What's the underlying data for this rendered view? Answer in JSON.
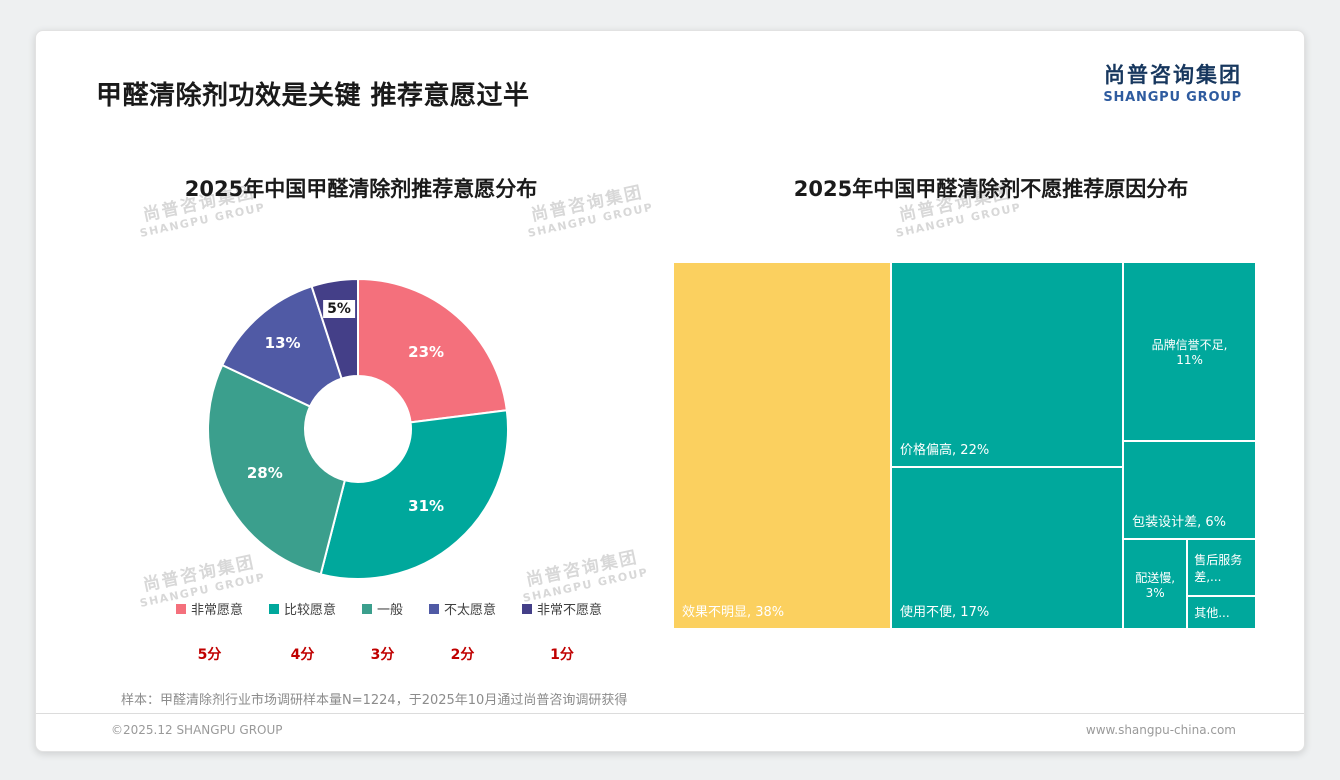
{
  "page": {
    "title": "甲醛清除剂功效是关键 推荐意愿过半",
    "logo": {
      "cn": "尚普咨询集团",
      "en": "SHANGPU GROUP"
    },
    "watermark": {
      "cn": "尚普咨询集团",
      "en": "SHANGPU GROUP"
    },
    "footnote": "样本：甲醛清除剂行业市场调研样本量N=1224，于2025年10月通过尚普咨询调研获得",
    "footer": {
      "left": "©2025.12 SHANGPU GROUP",
      "right": "www.shangpu-china.com"
    }
  },
  "chart_data": [
    {
      "type": "pie",
      "donut": true,
      "title": "2025年中国甲醛清除剂推荐意愿分布",
      "labels": [
        "非常愿意",
        "比较愿意",
        "一般",
        "不太愿意",
        "非常不愿意"
      ],
      "values": [
        23,
        31,
        28,
        13,
        5
      ],
      "colors": [
        "#F4707C",
        "#00A89C",
        "#3B9F8D",
        "#505AA5",
        "#443F88"
      ],
      "scores": [
        "5分",
        "4分",
        "3分",
        "2分",
        "1分"
      ],
      "label_format": "percent",
      "legend_position": "bottom"
    },
    {
      "type": "treemap",
      "title": "2025年中国甲醛清除剂不愿推荐原因分布",
      "items": [
        {
          "label": "效果不明显",
          "value": 38,
          "text": "效果不明显, 38%",
          "color": "#FBD05F",
          "rect": [
            0,
            0,
            0.374,
            1
          ],
          "align": "bottom-left"
        },
        {
          "label": "价格偏高",
          "value": 22,
          "text": "价格偏高, 22%",
          "color": "#00A89C",
          "rect": [
            0.374,
            0,
            0.398,
            0.559
          ],
          "align": "bottom-left"
        },
        {
          "label": "使用不便",
          "value": 17,
          "text": "使用不便, 17%",
          "color": "#00A89C",
          "rect": [
            0.374,
            0.559,
            0.398,
            0.441
          ],
          "align": "bottom-left"
        },
        {
          "label": "品牌信誉不足",
          "value": 11,
          "text": "品牌信誉不足,\n11%",
          "color": "#00A89C",
          "rect": [
            0.772,
            0,
            0.228,
            0.488
          ],
          "align": "center"
        },
        {
          "label": "包装设计差",
          "value": 6,
          "text": "包装设计差, 6%",
          "color": "#00A89C",
          "rect": [
            0.772,
            0.488,
            0.228,
            0.267
          ],
          "align": "bottom-left"
        },
        {
          "label": "配送慢",
          "value": 3,
          "text": "配送慢,\n3%",
          "color": "#00A89C",
          "rect": [
            0.772,
            0.755,
            0.11,
            0.245
          ],
          "align": "center"
        },
        {
          "label": "售后服务差",
          "text": "售后服务差,...",
          "color": "#00A89C",
          "rect": [
            0.882,
            0.755,
            0.118,
            0.155
          ],
          "align": "left-mid"
        },
        {
          "label": "其他",
          "text": "其他...",
          "color": "#00A89C",
          "rect": [
            0.882,
            0.91,
            0.118,
            0.09
          ],
          "align": "left-mid"
        }
      ]
    }
  ]
}
